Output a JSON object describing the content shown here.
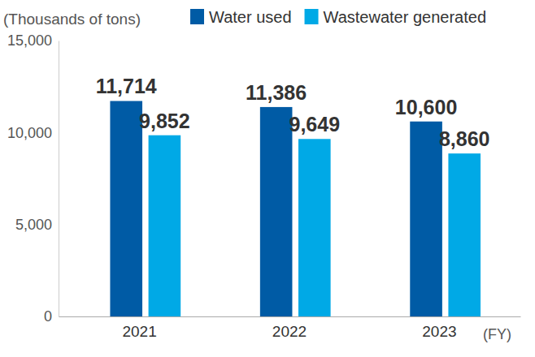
{
  "chart_data": {
    "type": "bar",
    "y_label": "(Thousands of tons)",
    "x_label": "(FY)",
    "categories": [
      "2021",
      "2022",
      "2023"
    ],
    "series": [
      {
        "name": "Water used",
        "color": "#005ba5",
        "values": [
          11714,
          11386,
          10600
        ],
        "value_labels": [
          "11,714",
          "11,386",
          "10,600"
        ]
      },
      {
        "name": "Wastewater generated",
        "color": "#00a9e6",
        "values": [
          9852,
          9649,
          8860
        ],
        "value_labels": [
          "9,852",
          "9,649",
          "8,860"
        ]
      }
    ],
    "ylim": [
      0,
      15000
    ],
    "yticks": [
      0,
      {
        "value": 5000,
        "label": "5,000"
      },
      {
        "value": 10000,
        "label": "10,000"
      },
      {
        "value": 15000,
        "label": "15,000"
      }
    ],
    "grid": false,
    "legend": "top",
    "data_labels": true
  }
}
